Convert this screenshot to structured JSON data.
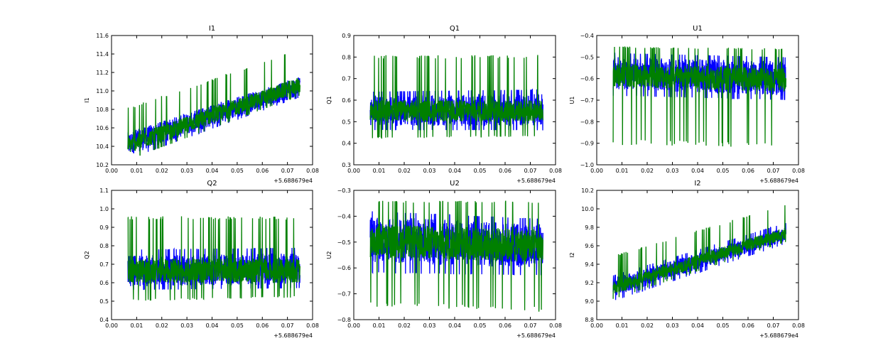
{
  "chart_data": [
    {
      "type": "line",
      "title": "I1",
      "ylabel": "I1",
      "xlabel": "",
      "x_offset_label": "+5.688679e4",
      "xlim": [
        0.0,
        0.08
      ],
      "xticks": [
        "0.00",
        "0.01",
        "0.02",
        "0.03",
        "0.04",
        "0.05",
        "0.06",
        "0.07",
        "0.08"
      ],
      "ylim": [
        10.2,
        11.6
      ],
      "yticks": [
        "10.2",
        "10.4",
        "10.6",
        "10.8",
        "11.0",
        "11.2",
        "11.4",
        "11.6"
      ],
      "x_range": [
        0.0065,
        0.075
      ],
      "series": [
        {
          "name": "blue",
          "color": "#0000ff",
          "lower": [
            10.3,
            10.95
          ],
          "upper": [
            10.55,
            11.15
          ],
          "spike_low": [
            10.26,
            10.93
          ],
          "spike_high": [
            10.55,
            11.15
          ]
        },
        {
          "name": "green",
          "color": "#008000",
          "lower": [
            10.32,
            10.98
          ],
          "upper": [
            10.5,
            11.15
          ],
          "spike_low": [
            10.25,
            10.95
          ],
          "spike_high": [
            10.82,
            11.46
          ]
        }
      ]
    },
    {
      "type": "line",
      "title": "Q1",
      "ylabel": "Q1",
      "xlabel": "",
      "x_offset_label": "+5.688679e4",
      "xlim": [
        0.0,
        0.08
      ],
      "xticks": [
        "0.00",
        "0.01",
        "0.02",
        "0.03",
        "0.04",
        "0.05",
        "0.06",
        "0.07",
        "0.08"
      ],
      "ylim": [
        0.3,
        0.9
      ],
      "yticks": [
        "0.3",
        "0.4",
        "0.5",
        "0.6",
        "0.7",
        "0.8",
        "0.9"
      ],
      "x_range": [
        0.0065,
        0.075
      ],
      "series": [
        {
          "name": "blue",
          "color": "#0000ff",
          "lower": [
            0.48,
            0.48
          ],
          "upper": [
            0.62,
            0.63
          ],
          "spike_low": [
            0.46,
            0.46
          ],
          "spike_high": [
            0.64,
            0.65
          ]
        },
        {
          "name": "green",
          "color": "#008000",
          "lower": [
            0.5,
            0.5
          ],
          "upper": [
            0.6,
            0.6
          ],
          "spike_low": [
            0.42,
            0.43
          ],
          "spike_high": [
            0.81,
            0.81
          ]
        }
      ]
    },
    {
      "type": "line",
      "title": "U1",
      "ylabel": "U1",
      "xlabel": "",
      "x_offset_label": "+5.688679e4",
      "xlim": [
        0.0,
        0.08
      ],
      "xticks": [
        "0.00",
        "0.01",
        "0.02",
        "0.03",
        "0.04",
        "0.05",
        "0.06",
        "0.07",
        "0.08"
      ],
      "ylim": [
        -1.0,
        -0.4
      ],
      "yticks": [
        "−1.0",
        "−0.9",
        "−0.8",
        "−0.7",
        "−0.6",
        "−0.5",
        "−0.4"
      ],
      "x_range": [
        0.0065,
        0.075
      ],
      "series": [
        {
          "name": "blue",
          "color": "#0000ff",
          "lower": [
            -0.65,
            -0.68
          ],
          "upper": [
            -0.5,
            -0.52
          ],
          "spike_low": [
            -0.68,
            -0.7
          ],
          "spike_high": [
            -0.48,
            -0.5
          ]
        },
        {
          "name": "green",
          "color": "#008000",
          "lower": [
            -0.64,
            -0.66
          ],
          "upper": [
            -0.53,
            -0.55
          ],
          "spike_low": [
            -0.91,
            -0.92
          ],
          "spike_high": [
            -0.45,
            -0.46
          ]
        }
      ]
    },
    {
      "type": "line",
      "title": "Q2",
      "ylabel": "Q2",
      "xlabel": "",
      "x_offset_label": "+5.688679e4",
      "xlim": [
        0.0,
        0.08
      ],
      "xticks": [
        "0.00",
        "0.01",
        "0.02",
        "0.03",
        "0.04",
        "0.05",
        "0.06",
        "0.07",
        "0.08"
      ],
      "ylim": [
        0.4,
        1.1
      ],
      "yticks": [
        "0.4",
        "0.5",
        "0.6",
        "0.7",
        "0.8",
        "0.9",
        "1.0",
        "1.1"
      ],
      "x_range": [
        0.0065,
        0.075
      ],
      "series": [
        {
          "name": "blue",
          "color": "#0000ff",
          "lower": [
            0.58,
            0.59
          ],
          "upper": [
            0.75,
            0.76
          ],
          "spike_low": [
            0.56,
            0.57
          ],
          "spike_high": [
            0.78,
            0.79
          ]
        },
        {
          "name": "green",
          "color": "#008000",
          "lower": [
            0.6,
            0.6
          ],
          "upper": [
            0.73,
            0.73
          ],
          "spike_low": [
            0.5,
            0.52
          ],
          "spike_high": [
            0.96,
            0.96
          ]
        }
      ]
    },
    {
      "type": "line",
      "title": "U2",
      "ylabel": "U2",
      "xlabel": "",
      "x_offset_label": "+5.688679e4",
      "xlim": [
        0.0,
        0.08
      ],
      "xticks": [
        "0.00",
        "0.01",
        "0.02",
        "0.03",
        "0.04",
        "0.05",
        "0.06",
        "0.07",
        "0.08"
      ],
      "ylim": [
        -0.8,
        -0.3
      ],
      "yticks": [
        "−0.8",
        "−0.7",
        "−0.6",
        "−0.5",
        "−0.4",
        "−0.3"
      ],
      "x_range": [
        0.0065,
        0.075
      ],
      "series": [
        {
          "name": "blue",
          "color": "#0000ff",
          "lower": [
            -0.58,
            -0.6
          ],
          "upper": [
            -0.4,
            -0.43
          ],
          "spike_low": [
            -0.62,
            -0.63
          ],
          "spike_high": [
            -0.38,
            -0.41
          ]
        },
        {
          "name": "green",
          "color": "#008000",
          "lower": [
            -0.56,
            -0.58
          ],
          "upper": [
            -0.43,
            -0.45
          ],
          "spike_low": [
            -0.75,
            -0.77
          ],
          "spike_high": [
            -0.34,
            -0.34
          ]
        }
      ]
    },
    {
      "type": "line",
      "title": "I2",
      "ylabel": "I2",
      "xlabel": "",
      "x_offset_label": "+5.688679e4",
      "xlim": [
        0.0,
        0.08
      ],
      "xticks": [
        "0.00",
        "0.01",
        "0.02",
        "0.03",
        "0.04",
        "0.05",
        "0.06",
        "0.07",
        "0.08"
      ],
      "ylim": [
        8.8,
        10.2
      ],
      "yticks": [
        "8.8",
        "9.0",
        "9.2",
        "9.4",
        "9.6",
        "9.8",
        "10.0",
        "10.2"
      ],
      "x_range": [
        0.0065,
        0.075
      ],
      "series": [
        {
          "name": "blue",
          "color": "#0000ff",
          "lower": [
            9.05,
            9.65
          ],
          "upper": [
            9.25,
            9.8
          ],
          "spike_low": [
            9.0,
            9.62
          ],
          "spike_high": [
            9.28,
            9.85
          ]
        },
        {
          "name": "green",
          "color": "#008000",
          "lower": [
            9.07,
            9.67
          ],
          "upper": [
            9.22,
            9.8
          ],
          "spike_low": [
            9.02,
            9.64
          ],
          "spike_high": [
            9.5,
            10.05
          ]
        }
      ]
    }
  ]
}
